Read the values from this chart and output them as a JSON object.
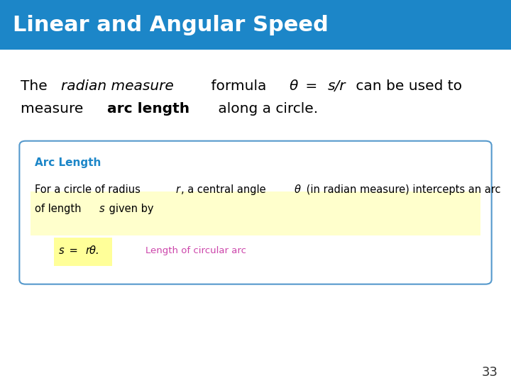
{
  "title": "Linear and Angular Speed",
  "title_bg_color": "#1C86C8",
  "title_text_color": "#FFFFFF",
  "slide_bg_color": "#FFFFFF",
  "page_number": "33",
  "box_title": "Arc Length",
  "box_title_color": "#1C86C8",
  "box_border_color": "#5599CC",
  "box_bg_color": "#FFFFFF",
  "box_formula_bg": "#FFFF99",
  "box_formula_label": "Length of circular arc",
  "box_formula_label_color": "#CC44AA",
  "body_text_color": "#000000",
  "highlight_bg": "#FFFFCC"
}
